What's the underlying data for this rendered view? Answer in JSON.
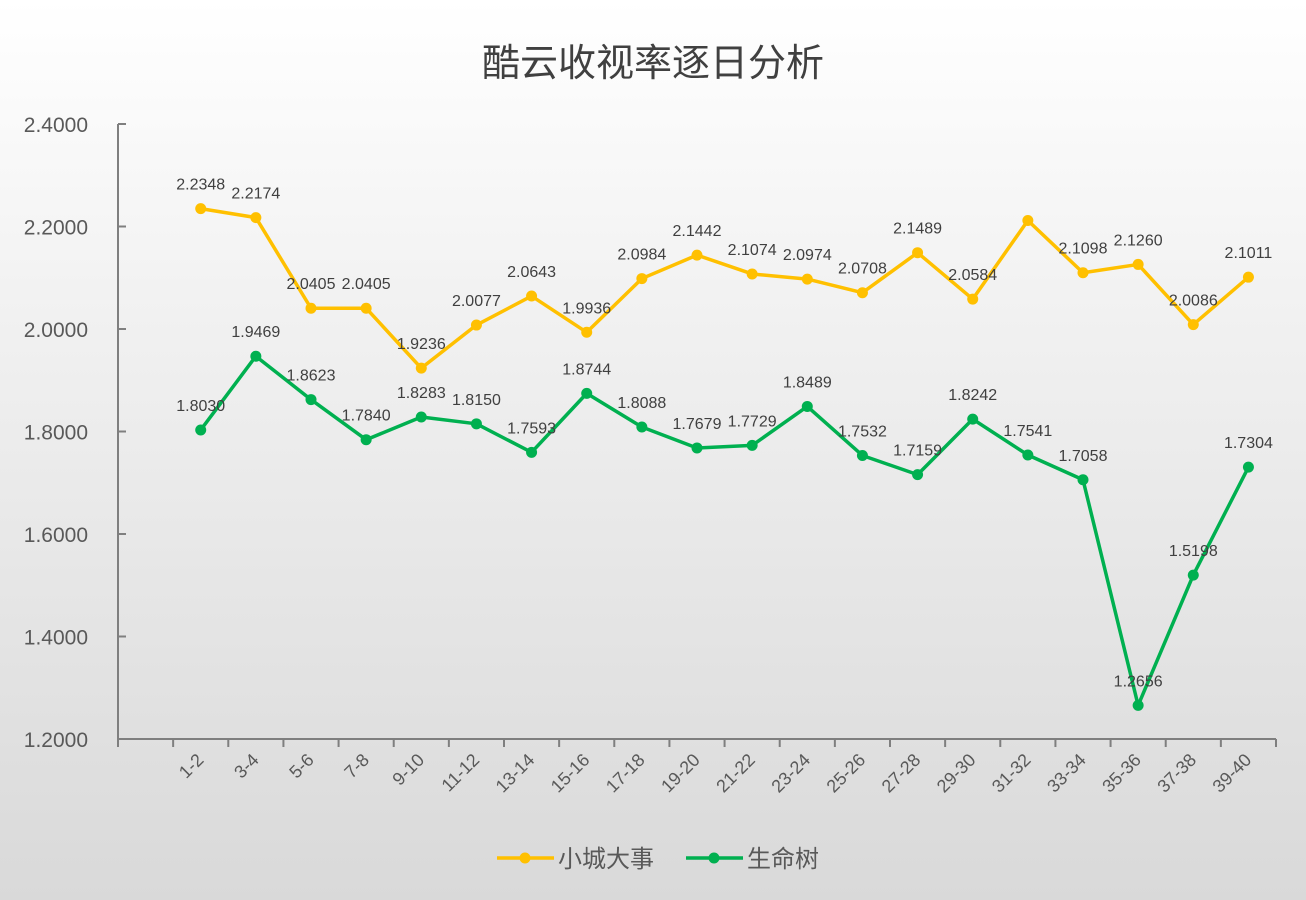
{
  "chart_data": {
    "type": "line",
    "title": "酷云收视率逐日分析",
    "categories": [
      "1-2",
      "3-4",
      "5-6",
      "7-8",
      "9-10",
      "11-12",
      "13-14",
      "15-16",
      "17-18",
      "19-20",
      "21-22",
      "23-24",
      "25-26",
      "27-28",
      "29-30",
      "31-32",
      "33-34",
      "35-36",
      "37-38",
      "39-40"
    ],
    "ylim": [
      1.2,
      2.4
    ],
    "yticks": [
      "1.2000",
      "1.4000",
      "1.6000",
      "1.8000",
      "2.0000",
      "2.2000",
      "2.4000"
    ],
    "grid": false,
    "legend_position": "bottom",
    "series": [
      {
        "name": "小城大事",
        "color": "#FFC000",
        "values": [
          2.2348,
          2.2174,
          2.0405,
          2.0405,
          1.9236,
          2.0077,
          2.0643,
          1.9936,
          2.0984,
          2.1442,
          2.1074,
          2.0974,
          2.0708,
          2.1489,
          2.0584,
          2.2117,
          2.1098,
          2.126,
          2.0086,
          2.1011
        ],
        "labels": [
          "2.2348",
          "2.2174",
          "2.0405",
          "2.0405",
          "1.9236",
          "2.0077",
          "2.0643",
          "1.9936",
          "2.0984",
          "2.1442",
          "2.1074",
          "2.0974",
          "2.0708",
          "2.1489",
          "2.0584",
          null,
          "2.1098",
          "2.1260",
          "2.0086",
          "2.1011"
        ]
      },
      {
        "name": "生命树",
        "color": "#00B050",
        "values": [
          1.803,
          1.9469,
          1.8623,
          1.784,
          1.8283,
          1.815,
          1.7593,
          1.8744,
          1.8088,
          1.7679,
          1.7729,
          1.8489,
          1.7532,
          1.7159,
          1.8242,
          1.7541,
          1.7058,
          1.2656,
          1.5198,
          1.7304
        ],
        "labels": [
          "1.8030",
          "1.9469",
          "1.8623",
          "1.7840",
          "1.8283",
          "1.8150",
          "1.7593",
          "1.8744",
          "1.8088",
          "1.7679",
          "1.7729",
          "1.8489",
          "1.7532",
          "1.7159",
          "1.8242",
          "1.7541",
          "1.7058",
          "1.2656",
          "1.5198",
          "1.7304"
        ]
      }
    ]
  }
}
